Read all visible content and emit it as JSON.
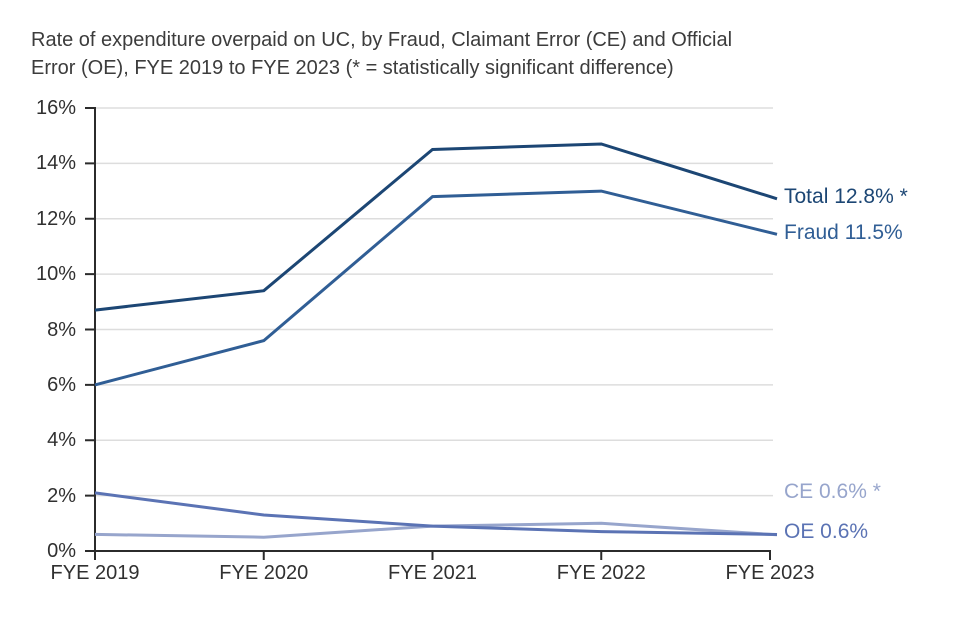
{
  "title": {
    "line1": "Rate of expenditure overpaid on UC, by Fraud, Claimant Error (CE) and Official",
    "line2": "Error (OE), FYE 2019 to FYE 2023 (* = statistically significant difference)"
  },
  "chart_data": {
    "type": "line",
    "title": "Rate of expenditure overpaid on UC, by Fraud, Claimant Error (CE) and Official Error (OE), FYE 2019 to FYE 2023 (* = statistically significant difference)",
    "x_categories": [
      "FYE 2019",
      "FYE 2020",
      "FYE 2021",
      "FYE 2022",
      "FYE 2023"
    ],
    "y_tick_labels": [
      "0%",
      "2%",
      "4%",
      "6%",
      "8%",
      "10%",
      "12%",
      "14%",
      "16%"
    ],
    "ylim": [
      0,
      16
    ],
    "y_step": 2,
    "grid": "horizontal",
    "legend_position": "right-end-labels",
    "series": [
      {
        "name": "Total",
        "values": [
          8.7,
          9.4,
          14.5,
          14.7,
          12.8
        ],
        "color": "#1c4674",
        "end_label": "Total 12.8% *",
        "statistically_significant": true
      },
      {
        "name": "Fraud",
        "values": [
          6.0,
          7.6,
          12.8,
          13.0,
          11.5
        ],
        "color": "#305e95",
        "end_label": "Fraud 11.5%",
        "statistically_significant": false
      },
      {
        "name": "Claimant Error (CE)",
        "values": [
          0.6,
          0.5,
          0.9,
          1.0,
          0.6
        ],
        "color": "#97a5cc",
        "end_label": "CE 0.6% *",
        "statistically_significant": true
      },
      {
        "name": "Official Error (OE)",
        "values": [
          2.1,
          1.3,
          0.9,
          0.7,
          0.6
        ],
        "color": "#5b73b4",
        "end_label": "OE 0.6%",
        "statistically_significant": false
      }
    ]
  },
  "colors": {
    "axis": "#2b2b2b",
    "gridline": "#dddddd",
    "title_text": "#3c3c3c",
    "tick_text": "#303030"
  }
}
